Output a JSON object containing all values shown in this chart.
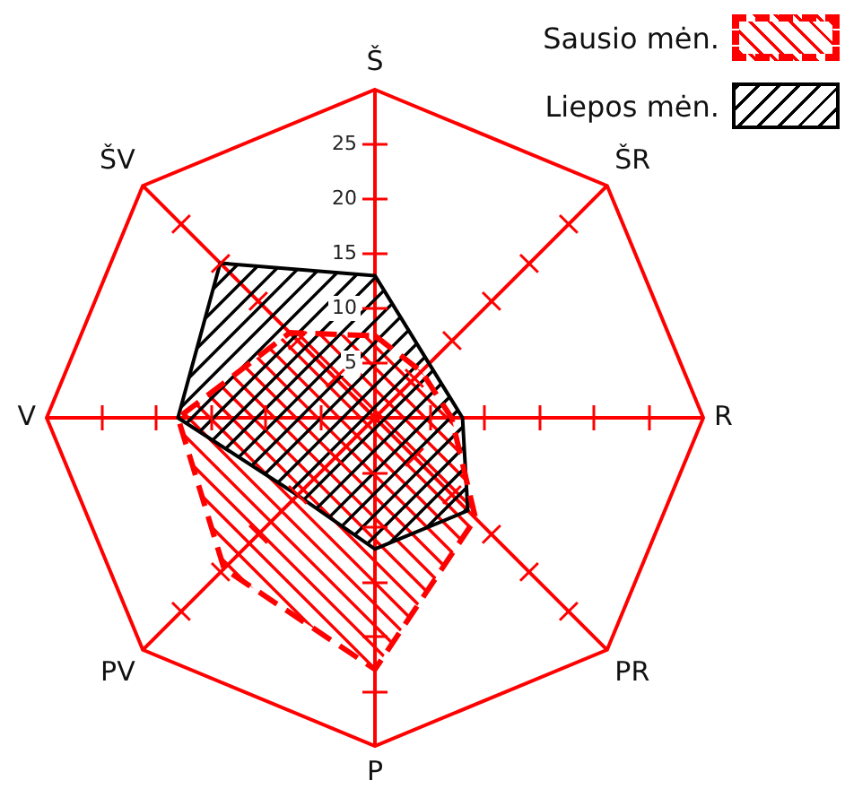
{
  "chart_data": {
    "type": "radar",
    "categories": [
      "Š",
      "ŠR",
      "R",
      "PR",
      "P",
      "PV",
      "V",
      "ŠV"
    ],
    "series": [
      {
        "name": "Sausio mėn.",
        "color": "#ff0000",
        "line_style": "dashed",
        "values": [
          7.5,
          6,
          7,
          13,
          23,
          19.5,
          18,
          11
        ]
      },
      {
        "name": "Liepos mėn.",
        "color": "#000000",
        "line_style": "solid",
        "values": [
          13,
          7,
          8,
          12,
          12,
          10,
          18,
          20
        ]
      }
    ],
    "ylim": [
      0,
      30
    ],
    "yticks": [
      5,
      10,
      15,
      20,
      25
    ],
    "grid": false,
    "legend": "top right",
    "marker": "none"
  }
}
